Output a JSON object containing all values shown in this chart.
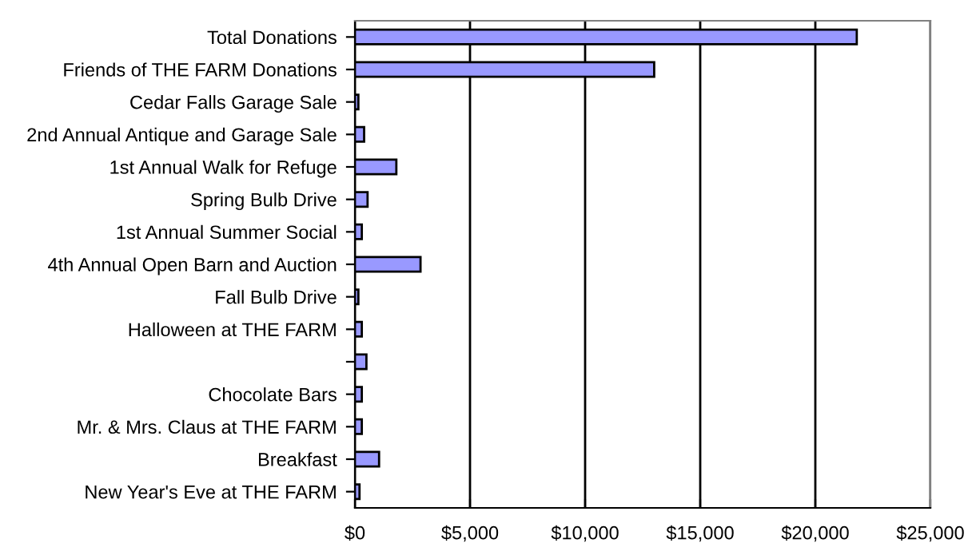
{
  "chart_data": {
    "type": "bar",
    "orientation": "horizontal",
    "categories": [
      "Total Donations",
      "Friends of THE FARM Donations",
      "Cedar Falls Garage Sale",
      "2nd Annual Antique and Garage Sale",
      "1st Annual Walk for Refuge",
      "Spring Bulb Drive",
      "1st Annual Summer Social",
      "4th Annual Open Barn and Auction",
      "Fall Bulb Drive",
      "Halloween at THE FARM",
      null,
      "Chocolate Bars",
      "Mr. & Mrs. Claus at THE FARM",
      "Breakfast",
      "New Year's Eve at THE FARM"
    ],
    "values": [
      21800,
      13000,
      150,
      400,
      1800,
      550,
      300,
      2850,
      150,
      300,
      500,
      300,
      300,
      1050,
      200
    ],
    "color": "#9999ff",
    "xlim": [
      0,
      25000
    ],
    "xticks": [
      {
        "value": 0,
        "label": "$0"
      },
      {
        "value": 5000,
        "label": "$5,000"
      },
      {
        "value": 10000,
        "label": "$10,000"
      },
      {
        "value": 15000,
        "label": "$15,000"
      },
      {
        "value": 20000,
        "label": "$20,000"
      },
      {
        "value": 25000,
        "label": "$25,000"
      }
    ],
    "grid": "x",
    "legend": false
  }
}
